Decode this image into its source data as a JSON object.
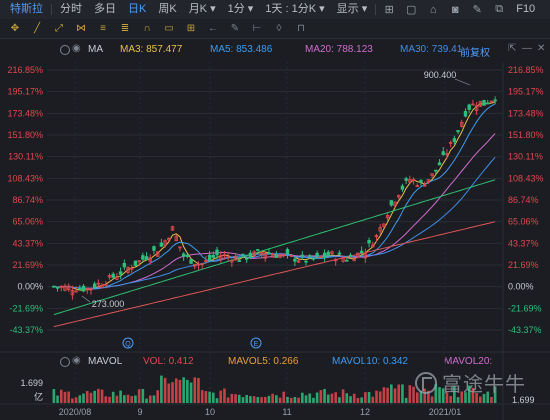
{
  "topbar": {
    "tabs": [
      {
        "label": "特斯拉",
        "active": true
      },
      {
        "label": "分时"
      },
      {
        "label": "多日"
      },
      {
        "label": "日K",
        "active": true
      },
      {
        "label": "周K"
      },
      {
        "label": "月K ▾"
      },
      {
        "label": "1分 ▾"
      },
      {
        "label": "1天 : 1分K ▾"
      },
      {
        "label": "显示 ▾"
      }
    ],
    "right_label": "F10"
  },
  "ma_legend": {
    "name": "MA",
    "ma3": "MA3: 857.477",
    "ma5": "MA5: 853.486",
    "ma20": "MA20: 788.123",
    "ma30": "MA30: 739.41",
    "adjust": "前复权"
  },
  "vol_legend": {
    "name": "MAVOL",
    "vol": "VOL: 0.412",
    "mavol5": "MAVOL5: 0.266",
    "mavol10": "MAVOL10: 0.342",
    "mavol20": "MAVOL20:"
  },
  "colors": {
    "up": "#e0484e",
    "down": "#2dbf7c",
    "ma3": "#e8c04a",
    "ma5": "#3d9bf0",
    "ma20": "#d06ccf",
    "ma30": "#3f8dea",
    "ma60": "#2fbf72",
    "ma120": "#e05656"
  },
  "chart_data": {
    "type": "candlestick",
    "y_ticks": [
      "216.85%",
      "195.17%",
      "173.48%",
      "151.80%",
      "130.11%",
      "108.43%",
      "86.74%",
      "65.06%",
      "43.37%",
      "21.69%",
      "0.00%",
      "-21.69%",
      "-43.37%"
    ],
    "y_range": [
      -43.37,
      216.85
    ],
    "x_ticks": [
      "2020/08",
      "9",
      "10",
      "11",
      "12",
      "2021/01"
    ],
    "annotations": {
      "high": "900.400",
      "low": "273.000"
    },
    "event_markers": [
      "Q",
      "E"
    ],
    "vol_ticks": {
      "top": "1.699",
      "bottom": "亿"
    },
    "vol_right_label": "1.699",
    "watermark": "富途牛牛"
  }
}
